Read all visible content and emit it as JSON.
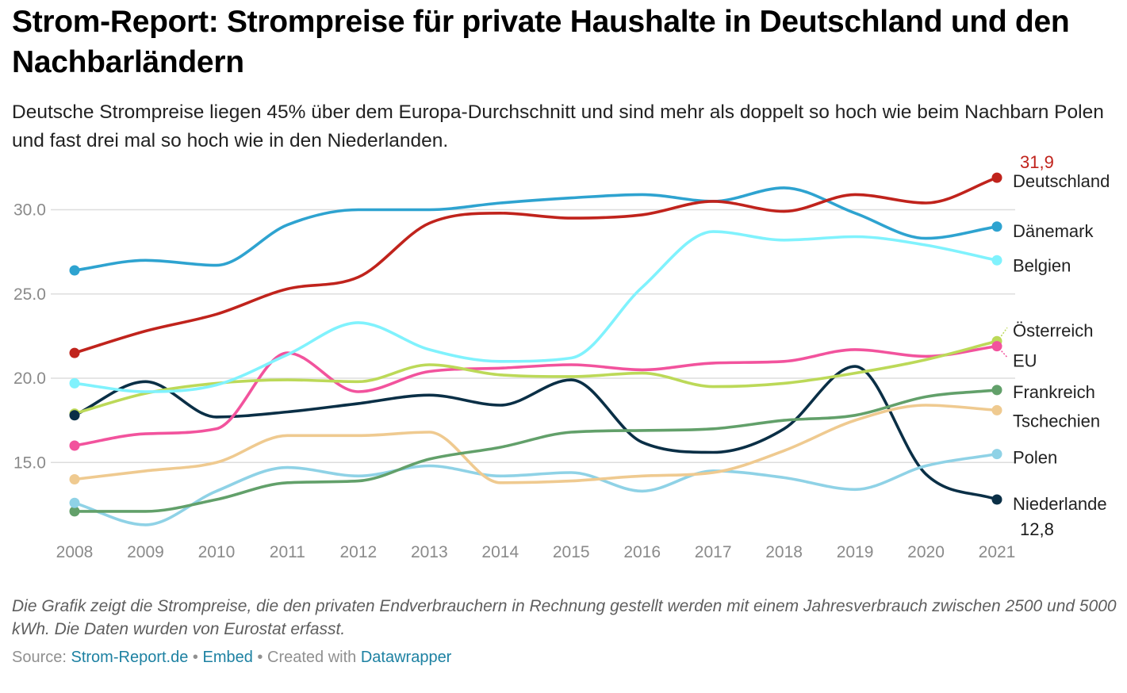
{
  "title": "Strom-Report: Strompreise für private Haushalte in Deutschland und den Nachbarländern",
  "subtitle": "Deutsche Strompreise liegen 45% über dem Europa-Durchschnitt und sind mehr als doppelt so hoch wie beim Nachbarn Polen und fast drei mal so hoch wie in den Niederlanden.",
  "notes": "Die Grafik zeigt die Strompreise, die den privaten Endverbrauchern in Rechnung gestellt werden mit einem Jahresverbrauch zwischen 2500 und 5000 kWh. Die Daten wurden von Eurostat erfasst.",
  "footer": {
    "source_label": "Source:",
    "source_link": "Strom-Report.de",
    "sep1": "•",
    "embed": "Embed",
    "sep2": "•",
    "created_label": "Created with",
    "created_link": "Datawrapper"
  },
  "chart_data": {
    "type": "line",
    "title": "Strom-Report: Strompreise für private Haushalte in Deutschland und den Nachbarländern",
    "xlabel": "",
    "ylabel": "",
    "x": [
      2008,
      2009,
      2010,
      2011,
      2012,
      2013,
      2014,
      2015,
      2016,
      2017,
      2018,
      2019,
      2020,
      2021
    ],
    "ylim": [
      11,
      32
    ],
    "yticks": [
      15,
      20,
      25,
      30
    ],
    "ytick_labels": [
      "15.0",
      "20.0",
      "25.0",
      "30.0"
    ],
    "grid": true,
    "series": [
      {
        "name": "Deutschland",
        "color": "#c0231c",
        "values": [
          21.5,
          22.8,
          23.8,
          25.3,
          26.0,
          29.2,
          29.8,
          29.5,
          29.7,
          30.5,
          29.9,
          30.9,
          30.4,
          31.9
        ]
      },
      {
        "name": "Dänemark",
        "color": "#2ea3d0",
        "values": [
          26.4,
          27.0,
          26.7,
          29.1,
          30.0,
          30.0,
          30.4,
          30.7,
          30.9,
          30.5,
          31.3,
          29.8,
          28.3,
          29.0
        ]
      },
      {
        "name": "Belgien",
        "color": "#80f2fd",
        "values": [
          19.7,
          19.2,
          19.6,
          21.4,
          23.3,
          21.7,
          21.0,
          21.2,
          25.4,
          28.7,
          28.2,
          28.4,
          27.9,
          27.0
        ]
      },
      {
        "name": "Österreich",
        "color": "#bcd958",
        "values": [
          17.9,
          19.1,
          19.7,
          19.9,
          19.8,
          20.8,
          20.2,
          20.1,
          20.3,
          19.5,
          19.7,
          20.3,
          21.1,
          22.2
        ]
      },
      {
        "name": "EU",
        "color": "#f2539d",
        "values": [
          16.0,
          16.7,
          17.0,
          21.5,
          19.2,
          20.4,
          20.6,
          20.8,
          20.5,
          20.9,
          21.0,
          21.7,
          21.3,
          21.9
        ]
      },
      {
        "name": "Frankreich",
        "color": "#62a06a",
        "values": [
          12.1,
          12.1,
          12.8,
          13.8,
          13.9,
          15.2,
          15.9,
          16.8,
          16.9,
          17.0,
          17.5,
          17.8,
          18.9,
          19.3
        ]
      },
      {
        "name": "Tschechien",
        "color": "#efca90",
        "values": [
          14.0,
          14.5,
          15.0,
          16.6,
          16.6,
          16.8,
          13.8,
          13.9,
          14.2,
          14.4,
          15.7,
          17.5,
          18.4,
          18.1
        ]
      },
      {
        "name": "Polen",
        "color": "#8fd2e6",
        "values": [
          12.6,
          11.3,
          13.3,
          14.7,
          14.2,
          14.8,
          14.2,
          14.4,
          13.3,
          14.5,
          14.1,
          13.4,
          14.8,
          15.5
        ]
      },
      {
        "name": "Niederlande",
        "color": "#0a2f46",
        "values": [
          17.8,
          19.8,
          17.7,
          18.0,
          18.5,
          19.0,
          18.4,
          19.9,
          16.2,
          15.6,
          17.0,
          20.7,
          14.3,
          12.8
        ]
      }
    ],
    "value_labels": [
      {
        "series": "Deutschland",
        "text": "31,9",
        "color": "#c0231c"
      },
      {
        "series": "Niederlande",
        "text": "12,8",
        "color": "#1a1a1a"
      }
    ]
  }
}
